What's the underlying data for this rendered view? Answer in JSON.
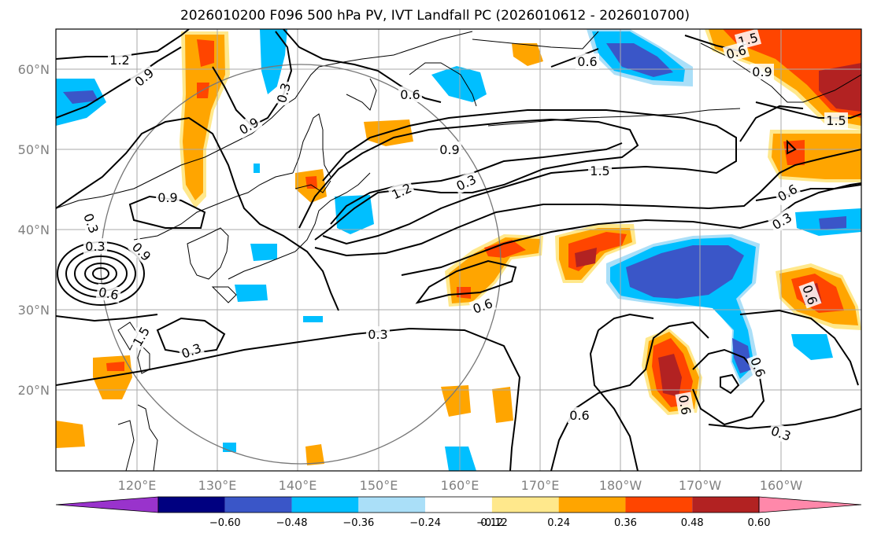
{
  "map": {
    "title": "2026010200 F096 500 hPa PV, IVT Landfall PC (2026010612 - 2026010700)",
    "lat_labels": [
      "60°N",
      "50°N",
      "40°N",
      "30°N",
      "20°N"
    ],
    "lon_labels": [
      "120°E",
      "130°E",
      "140°E",
      "150°E",
      "160°E",
      "170°E",
      "180°W",
      "170°W",
      "160°W"
    ],
    "contour_labels": [
      "1.2",
      "0.9",
      "0.9",
      "0.6",
      "0.6",
      "0.9",
      "1.5",
      "1.5",
      "0.6",
      "0.9",
      "0.3",
      "1.2",
      "1.5",
      "0.9",
      "0.3",
      "0.3",
      "0.9",
      "0.6",
      "1.5",
      "0.3",
      "0.6",
      "0.6",
      "0.3",
      "0.6",
      "0.6",
      "0.3",
      "0.3",
      "0.6",
      "0.6",
      "0.3"
    ],
    "colorbar": {
      "tick_labels": [
        "−0.60",
        "−0.48",
        "−0.36",
        "−0.24",
        "−0.12",
        "0.12",
        "0.24",
        "0.36",
        "0.48",
        "0.60"
      ],
      "colors": [
        "#9933cc",
        "#000080",
        "#3a56c8",
        "#00bfff",
        "#aadff8",
        "#ffffff",
        "#ffe88c",
        "#ffa500",
        "#ff4500",
        "#b22222",
        "#ff88aa"
      ]
    }
  }
}
